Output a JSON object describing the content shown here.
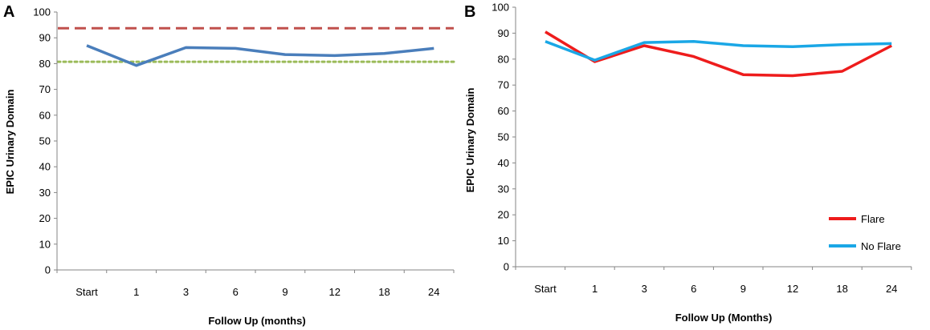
{
  "chart_data": [
    {
      "type": "line",
      "panel_label": "A",
      "categories": [
        "Start",
        "1",
        "3",
        "6",
        "9",
        "12",
        "18",
        "24"
      ],
      "xlabel": "Follow Up (months)",
      "ylabel": "EPIC Urinary Domain",
      "ylim": [
        0,
        100
      ],
      "yticks": [
        "0",
        "10",
        "20",
        "30",
        "40",
        "50",
        "60",
        "70",
        "80",
        "90",
        "100"
      ],
      "grid": false,
      "series": [
        {
          "name": "EPIC Urinary Domain",
          "color": "#4a7ebb",
          "style": "solid",
          "values": [
            87.0,
            79.3,
            86.2,
            85.9,
            83.5,
            83.1,
            83.9,
            85.9
          ]
        }
      ],
      "reference_lines": [
        {
          "name": "reference-dashed",
          "value": 93.7,
          "color": "#c0504d",
          "style": "dashed"
        },
        {
          "name": "reference-dotted",
          "value": 80.7,
          "color": "#9bbb59",
          "style": "dotted"
        }
      ]
    },
    {
      "type": "line",
      "panel_label": "B",
      "categories": [
        "Start",
        "1",
        "3",
        "6",
        "9",
        "12",
        "18",
        "24"
      ],
      "xlabel": "Follow Up (Months)",
      "ylabel": "EPIC Urinary Domain",
      "ylim": [
        0,
        100
      ],
      "yticks": [
        "0",
        "10",
        "20",
        "30",
        "40",
        "50",
        "60",
        "70",
        "80",
        "90",
        "100"
      ],
      "grid": false,
      "legend_position": "bottom-right",
      "series": [
        {
          "name": "Flare",
          "color": "#ee1c1c",
          "style": "solid",
          "values": [
            90.5,
            79.0,
            85.2,
            81.0,
            74.0,
            73.6,
            75.3,
            85.2
          ]
        },
        {
          "name": "No Flare",
          "color": "#1aa7e6",
          "style": "solid",
          "values": [
            86.8,
            79.6,
            86.4,
            86.8,
            85.2,
            84.8,
            85.6,
            86.0
          ]
        }
      ]
    }
  ]
}
